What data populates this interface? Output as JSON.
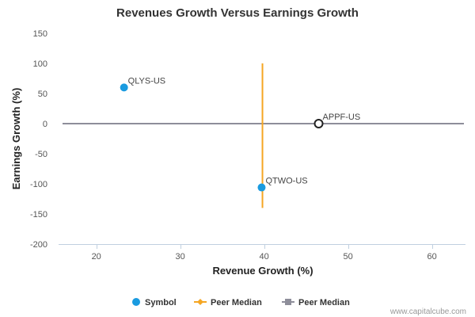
{
  "chart_data": {
    "type": "scatter",
    "title": "Revenues Growth Versus Earnings Growth",
    "xlabel": "Revenue Growth (%)",
    "ylabel": "Earnings Growth (%)",
    "xlim": [
      15.5,
      64
    ],
    "ylim": [
      -200,
      150
    ],
    "x_ticks": [
      20,
      30,
      40,
      50,
      60
    ],
    "y_ticks": [
      150,
      100,
      50,
      0,
      -50,
      -100,
      -150,
      -200
    ],
    "grid": false,
    "points": [
      {
        "label": "QLYS-US",
        "x": 23.3,
        "y": 60,
        "style": "filled"
      },
      {
        "label": "APPF-US",
        "x": 46.5,
        "y": 0,
        "style": "hollow"
      },
      {
        "label": "QTWO-US",
        "x": 39.7,
        "y": -106,
        "style": "filled"
      }
    ],
    "peer_median_x": {
      "x": 39.8,
      "y_range": [
        -140,
        100
      ]
    },
    "peer_median_y": {
      "y": 0
    },
    "legend": {
      "placement": "bottom",
      "items": [
        {
          "label": "Symbol",
          "marker": "circle",
          "color": "#1a9be0"
        },
        {
          "label": "Peer Median",
          "marker": "line-diamond",
          "color": "#f5a623"
        },
        {
          "label": "Peer Median",
          "marker": "line-square",
          "color": "#8e8e9a"
        }
      ]
    },
    "colors": {
      "symbol": "#1a9be0",
      "symbol_hollow_stroke": "#222222",
      "median_x": "#f5a623",
      "median_y": "#8e8e9a",
      "axis": "#c0d0e0"
    }
  },
  "credit": "www.capitalcube.com"
}
